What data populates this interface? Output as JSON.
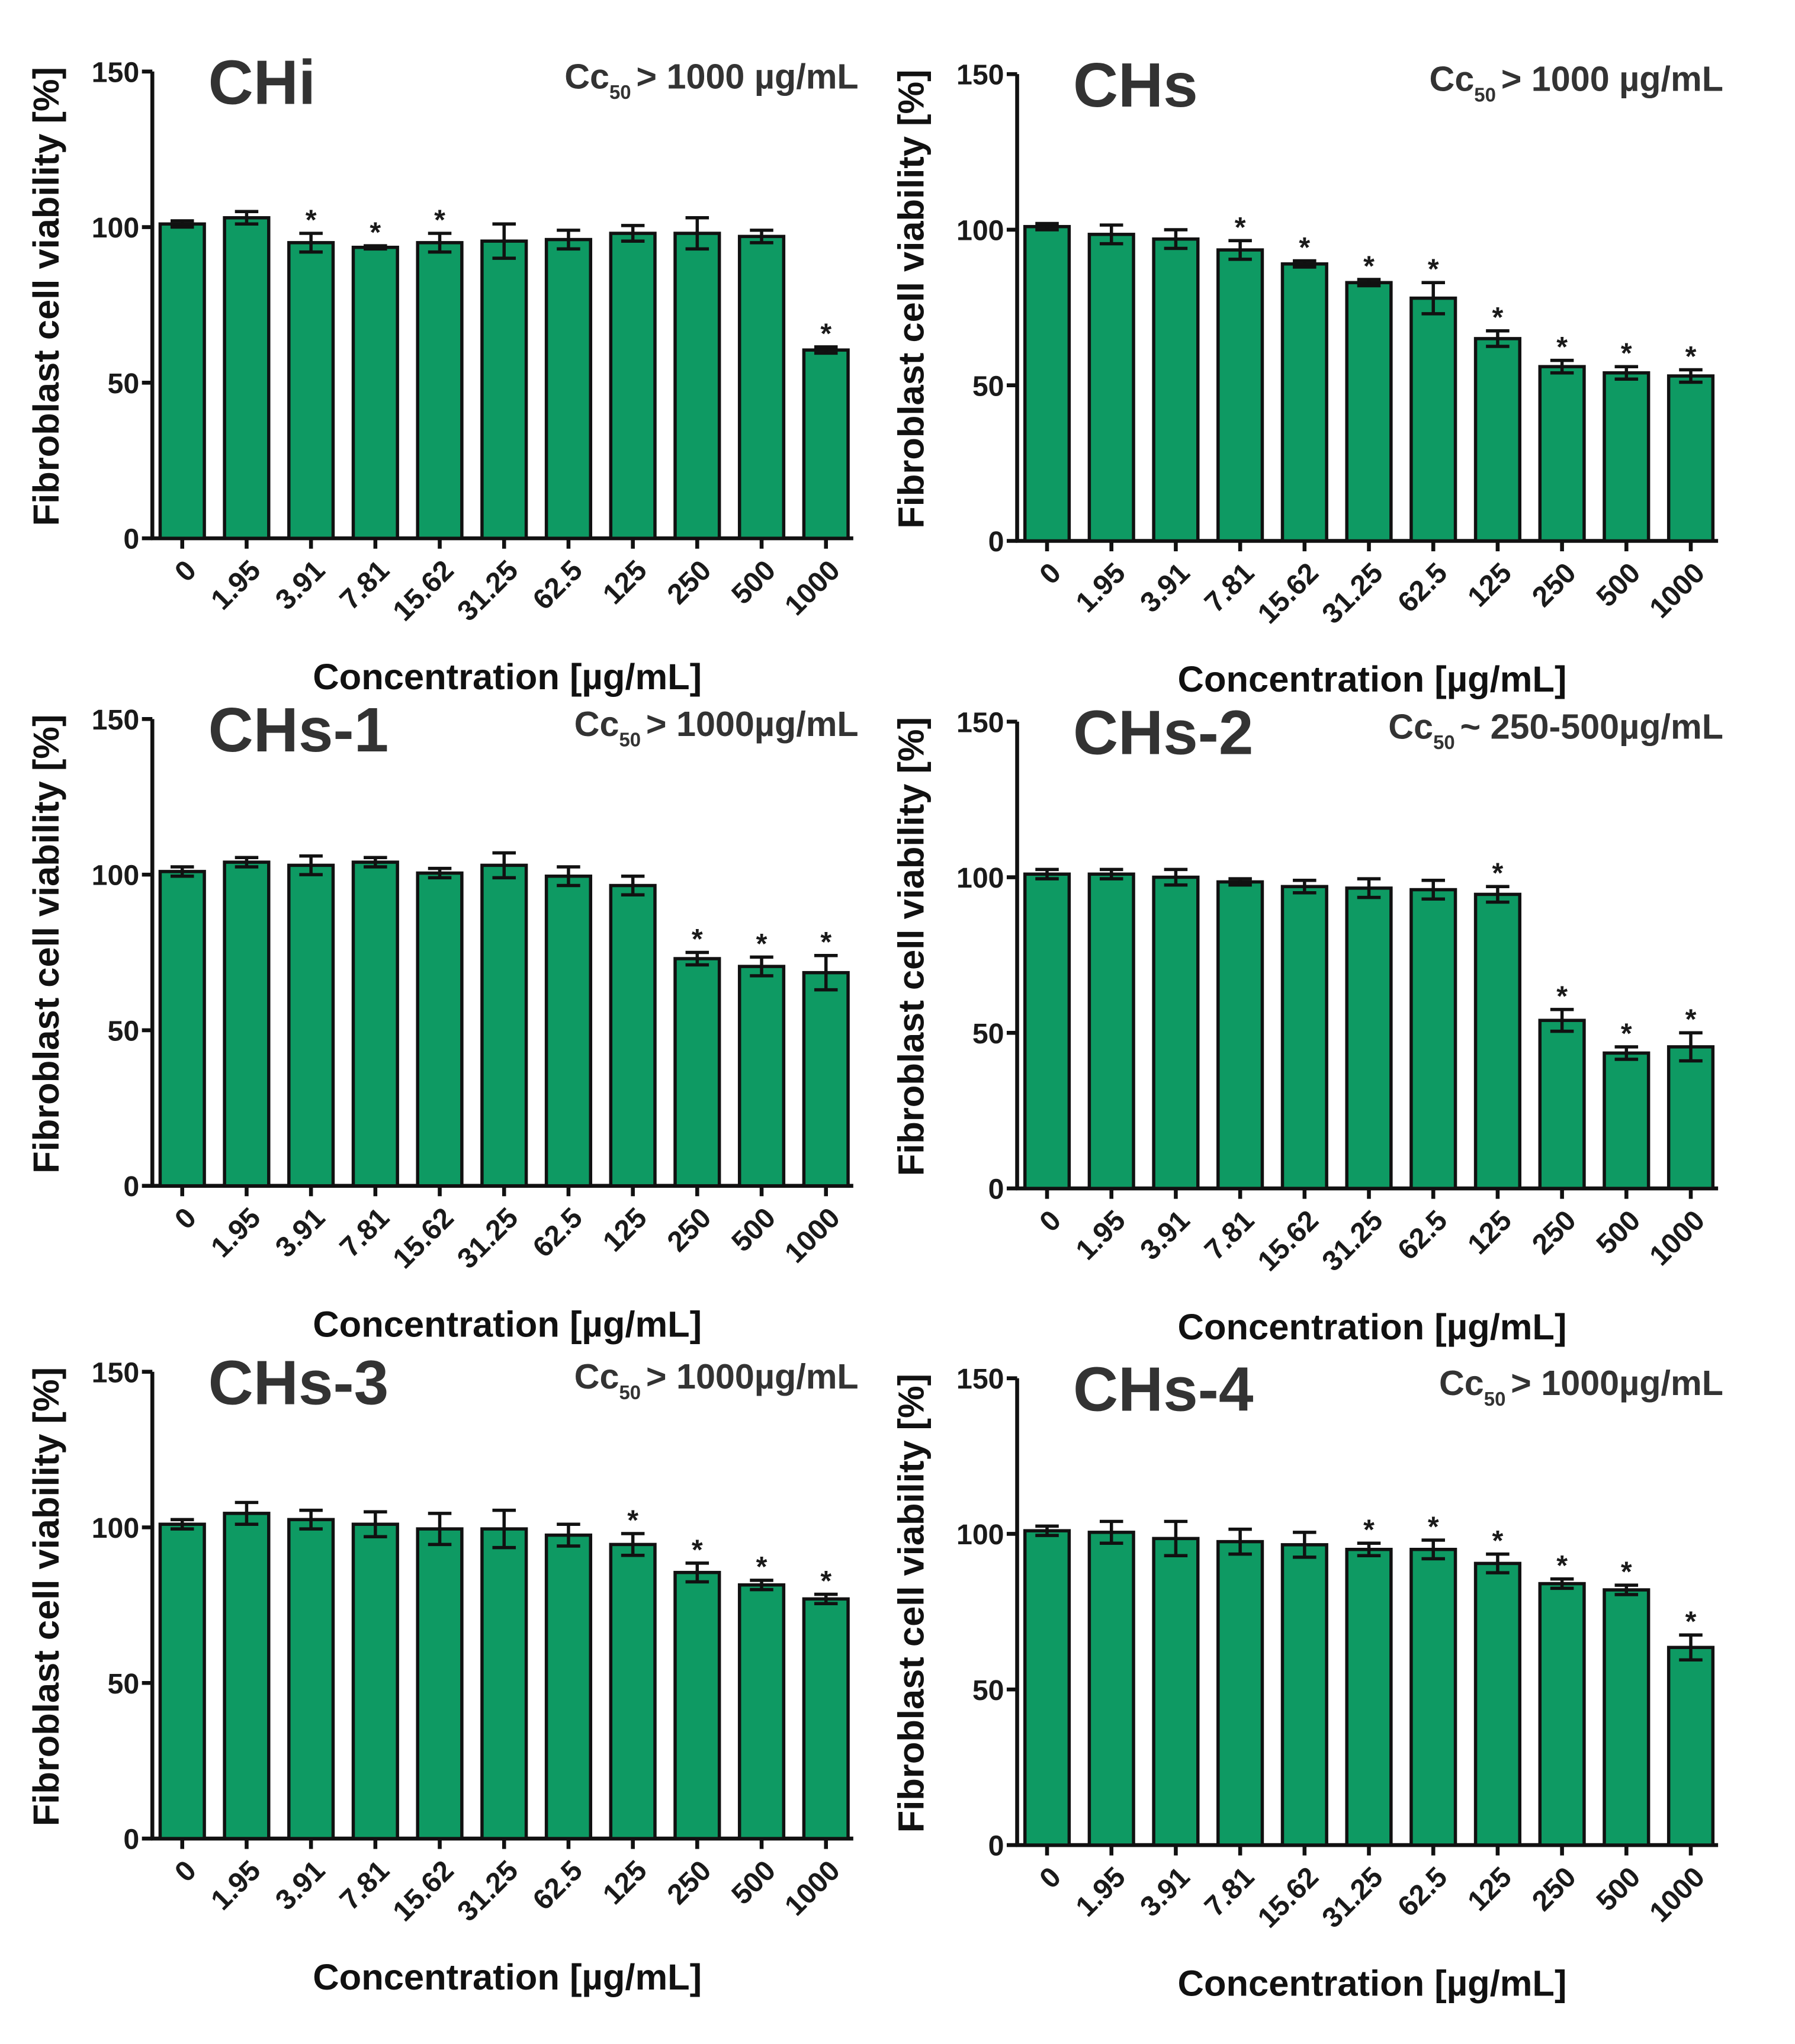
{
  "chart_data": [
    {
      "type": "bar",
      "title": "CHi",
      "annotation": {
        "main": "Cc",
        "sub": "50",
        "rest": "> 1000 µg/mL"
      },
      "xlabel": "Concentration [µg/mL]",
      "ylabel": "Fibroblast cell viability [%]",
      "ylim": [
        0,
        150
      ],
      "yticks": [
        "0",
        "50",
        "100",
        "150"
      ],
      "categories": [
        "0",
        "1.95",
        "3.91",
        "7.81",
        "15.62",
        "31.25",
        "62.5",
        "125",
        "250",
        "500",
        "1000"
      ],
      "values": [
        101,
        103,
        95,
        93.5,
        95,
        95.5,
        96,
        98,
        98,
        97,
        60.5
      ],
      "errors": [
        1,
        2,
        3,
        0.5,
        3,
        5.5,
        3,
        2.5,
        5,
        2,
        1
      ],
      "significant": [
        2,
        3,
        4,
        10
      ]
    },
    {
      "type": "bar",
      "title": "CHs",
      "annotation": {
        "main": "Cc",
        "sub": "50",
        "rest": "> 1000 µg/mL"
      },
      "xlabel": "Concentration [µg/mL]",
      "ylabel": "Fibroblast cell viability [%]",
      "ylim": [
        0,
        150
      ],
      "yticks": [
        "0",
        "50",
        "100",
        "150"
      ],
      "categories": [
        "0",
        "1.95",
        "3.91",
        "7.81",
        "15.62",
        "31.25",
        "62.5",
        "125",
        "250",
        "500",
        "1000"
      ],
      "values": [
        101,
        98.5,
        97,
        93.5,
        89,
        83,
        78,
        65,
        56,
        54,
        53
      ],
      "errors": [
        1,
        3,
        3,
        3,
        1,
        1,
        5,
        2.5,
        2,
        2,
        2
      ],
      "significant": [
        3,
        4,
        5,
        6,
        7,
        8,
        9,
        10
      ]
    },
    {
      "type": "bar",
      "title": "CHs-1",
      "annotation": {
        "main": "Cc",
        "sub": "50",
        "rest": "> 1000µg/mL"
      },
      "xlabel": "Concentration [µg/mL]",
      "ylabel": "Fibroblast cell viability [%]",
      "ylim": [
        0,
        150
      ],
      "yticks": [
        "0",
        "50",
        "100",
        "150"
      ],
      "categories": [
        "0",
        "1.95",
        "3.91",
        "7.81",
        "15.62",
        "31.25",
        "62.5",
        "125",
        "250",
        "500",
        "1000"
      ],
      "values": [
        101,
        104,
        103,
        104,
        100.5,
        103,
        99.5,
        96.5,
        73,
        70.5,
        68.5
      ],
      "errors": [
        1.5,
        1.5,
        3,
        1.5,
        1.5,
        4,
        3,
        3,
        2,
        3,
        5.5
      ],
      "significant": [
        8,
        9,
        10
      ]
    },
    {
      "type": "bar",
      "title": "CHs-2",
      "annotation": {
        "main": "Cc",
        "sub": "50",
        "rest": "~ 250-500µg/mL"
      },
      "xlabel": "Concentration [µg/mL]",
      "ylabel": "Fibroblast cell viability [%]",
      "ylim": [
        0,
        150
      ],
      "yticks": [
        "0",
        "50",
        "100",
        "150"
      ],
      "categories": [
        "0",
        "1.95",
        "3.91",
        "7.81",
        "15.62",
        "31.25",
        "62.5",
        "125",
        "250",
        "500",
        "1000"
      ],
      "values": [
        101,
        101,
        100,
        98.5,
        97,
        96.5,
        96,
        94.5,
        54,
        43.5,
        45.5
      ],
      "errors": [
        1.5,
        1.5,
        2.5,
        1,
        2,
        3,
        3,
        2.5,
        3.5,
        2,
        4.5
      ],
      "significant": [
        7,
        8,
        9,
        10
      ]
    },
    {
      "type": "bar",
      "title": "CHs-3",
      "annotation": {
        "main": "Cc",
        "sub": "50",
        "rest": "> 1000µg/mL"
      },
      "xlabel": "Concentration [µg/mL]",
      "ylabel": "Fibroblast cell viability [%]",
      "ylim": [
        0,
        150
      ],
      "yticks": [
        "0",
        "50",
        "100",
        "150"
      ],
      "categories": [
        "0",
        "1.95",
        "3.91",
        "7.81",
        "15.62",
        "31.25",
        "62.5",
        "125",
        "250",
        "500",
        "1000"
      ],
      "values": [
        101,
        104.5,
        102.5,
        101,
        99.5,
        99.5,
        97.5,
        94.5,
        85.5,
        81.5,
        77
      ],
      "errors": [
        1.5,
        3.5,
        3,
        4,
        5,
        6,
        3.5,
        3.5,
        3,
        1.5,
        1.5
      ],
      "significant": [
        7,
        8,
        9,
        10
      ]
    },
    {
      "type": "bar",
      "title": "CHs-4",
      "annotation": {
        "main": "Cc",
        "sub": "50",
        "rest": "> 1000µg/mL"
      },
      "xlabel": "Concentration [µg/mL]",
      "ylabel": "Fibroblast cell viability [%]",
      "ylim": [
        0,
        150
      ],
      "yticks": [
        "0",
        "50",
        "100",
        "150"
      ],
      "categories": [
        "0",
        "1.95",
        "3.91",
        "7.81",
        "15.62",
        "31.25",
        "62.5",
        "125",
        "250",
        "500",
        "1000"
      ],
      "values": [
        101,
        100.5,
        98.5,
        97.5,
        96.5,
        95,
        95,
        90.5,
        84,
        82,
        63.5
      ],
      "errors": [
        1.5,
        3.5,
        5.5,
        4,
        4,
        2,
        3,
        3,
        1.5,
        1.5,
        4
      ],
      "significant": [
        5,
        6,
        7,
        8,
        9,
        10
      ]
    }
  ],
  "colors": {
    "bar": "#0e9a63",
    "stroke": "#111111"
  },
  "significance_marker": "*"
}
